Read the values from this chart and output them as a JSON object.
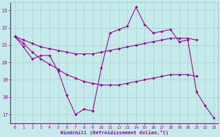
{
  "xlabel": "Windchill (Refroidissement éolien,°C)",
  "bg_color": "#c5eaea",
  "line_color": "#990099",
  "grid_color": "#aacccc",
  "x": [
    0,
    1,
    2,
    3,
    4,
    5,
    6,
    7,
    8,
    9,
    10,
    11,
    12,
    13,
    14,
    15,
    16,
    17,
    18,
    19,
    20,
    21,
    22,
    23
  ],
  "line1": [
    21.5,
    20.9,
    20.2,
    20.4,
    20.4,
    19.5,
    18.1,
    17.0,
    17.3,
    17.2,
    19.7,
    21.7,
    21.9,
    22.1,
    23.2,
    22.2,
    21.7,
    21.8,
    21.9,
    21.2,
    21.3,
    18.3,
    17.5,
    16.8
  ],
  "line2_x": [
    0,
    1,
    2,
    3,
    4,
    5,
    6,
    7,
    8,
    9,
    10,
    11,
    12,
    13,
    14,
    15,
    16,
    17,
    18,
    19,
    20,
    21
  ],
  "line2_y": [
    21.5,
    21.3,
    21.1,
    20.9,
    20.8,
    20.7,
    20.6,
    20.5,
    20.5,
    20.5,
    20.6,
    20.7,
    20.8,
    20.9,
    21.0,
    21.1,
    21.2,
    21.3,
    21.4,
    21.4,
    21.4,
    21.3
  ],
  "line3_x": [
    0,
    1,
    2,
    3,
    4,
    5,
    6,
    7,
    8,
    9,
    10,
    11,
    12,
    13,
    14,
    15,
    16,
    17,
    18,
    19,
    20,
    21
  ],
  "line3_y": [
    21.5,
    21.1,
    20.6,
    20.2,
    19.9,
    19.6,
    19.3,
    19.1,
    18.9,
    18.8,
    18.7,
    18.7,
    18.7,
    18.8,
    18.9,
    19.0,
    19.1,
    19.2,
    19.3,
    19.3,
    19.3,
    19.2
  ],
  "ylim": [
    16.5,
    23.5
  ],
  "xlim": [
    -0.5,
    23.5
  ],
  "yticks": [
    17,
    18,
    19,
    20,
    21,
    22,
    23
  ],
  "xticks": [
    0,
    1,
    2,
    3,
    4,
    5,
    6,
    7,
    8,
    9,
    10,
    11,
    12,
    13,
    14,
    15,
    16,
    17,
    18,
    19,
    20,
    21,
    22,
    23
  ]
}
